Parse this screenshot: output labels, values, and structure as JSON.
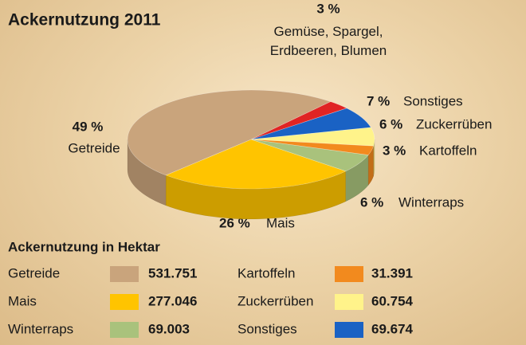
{
  "chart_data": {
    "type": "pie",
    "title": "Ackernutzung 2011",
    "categories": [
      "Gemüse, Spargel, Erdbeeren, Blumen",
      "Sonstiges",
      "Zuckerrüben",
      "Kartoffeln",
      "Winterraps",
      "Mais",
      "Getreide"
    ],
    "values": [
      3,
      7,
      6,
      3,
      6,
      26,
      49
    ],
    "value_labels": [
      "3 %",
      "7 %",
      "6 %",
      "3 %",
      "6 %",
      "26 %",
      "49 %"
    ],
    "colors": [
      "#e02424",
      "#1a62c4",
      "#fff38a",
      "#f28a1e",
      "#a9c27c",
      "#ffc400",
      "#c9a47c"
    ]
  },
  "hectare_table": {
    "title": "Ackernutzung in Hektar",
    "rows": [
      {
        "name": "Getreide",
        "color": "#c9a47c",
        "value": "531.751"
      },
      {
        "name": "Kartoffeln",
        "color": "#f28a1e",
        "value": "31.391"
      },
      {
        "name": "Mais",
        "color": "#ffc400",
        "value": "277.046"
      },
      {
        "name": "Zuckerrüben",
        "color": "#fff38a",
        "value": "60.754"
      },
      {
        "name": "Winterraps",
        "color": "#a9c27c",
        "value": "69.003"
      },
      {
        "name": "Sonstiges",
        "color": "#1a62c4",
        "value": "69.674"
      }
    ]
  }
}
